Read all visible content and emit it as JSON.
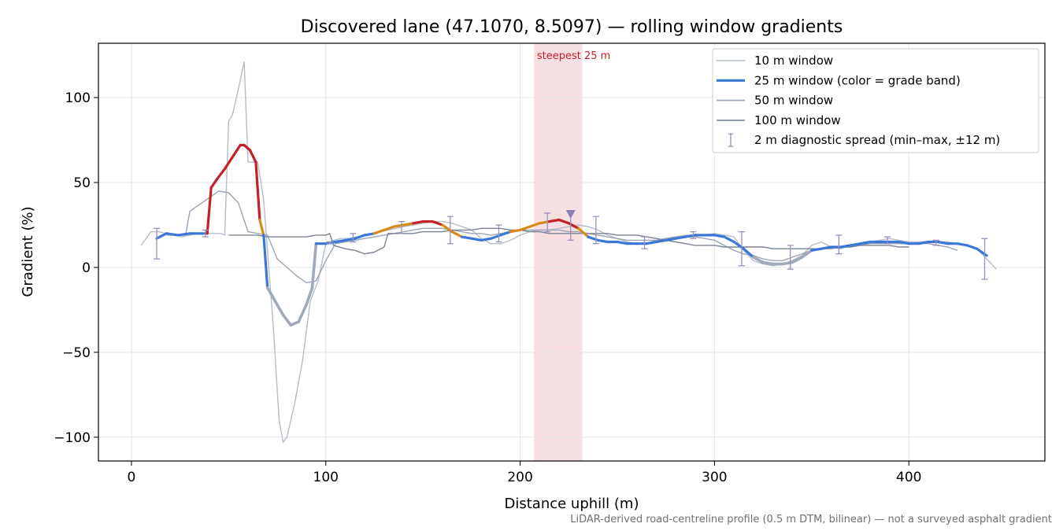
{
  "chart_data": {
    "type": "line",
    "title": "Discovered lane (47.1070, 8.5097) — rolling window gradients",
    "xlabel": "Distance uphill (m)",
    "ylabel": "Gradient (%)",
    "xlim": [
      -17,
      470
    ],
    "ylim": [
      -114,
      132
    ],
    "x_ticks": [
      0,
      100,
      200,
      300,
      400
    ],
    "y_ticks": [
      -100,
      -50,
      0,
      50,
      100
    ],
    "x_tick_labels": [
      "0",
      "100",
      "200",
      "300",
      "400"
    ],
    "y_tick_labels": [
      "−100",
      "−50",
      "0",
      "50",
      "100"
    ],
    "grid": true,
    "legend_position": "top-right",
    "footnote": "LiDAR-derived road-centreline profile (0.5 m DTM, bilinear) — not a surveyed asphalt gradient",
    "highlight": {
      "label": "steepest 25 m",
      "x_start": 207,
      "x_end": 232,
      "marker_x": 226,
      "marker_y": 31
    },
    "grade_band_colors": {
      "easy": "#3a78d8",
      "moderate": "#d88a1a",
      "steep": "#c4202a",
      "descent": "#a0aab8"
    },
    "series": [
      {
        "name": "10 m window",
        "color": "#b4bdc9",
        "x": [
          5,
          10,
          14,
          18,
          22,
          26,
          30,
          34,
          38,
          42,
          46,
          48,
          50,
          52,
          55,
          58,
          60,
          62,
          65,
          68,
          70,
          73,
          76,
          78,
          80,
          84,
          88,
          92,
          96,
          100,
          104,
          108,
          112,
          116,
          120,
          124,
          128,
          132,
          136,
          140,
          145,
          150,
          155,
          160,
          165,
          170,
          175,
          180,
          185,
          190,
          195,
          200,
          205,
          210,
          215,
          220,
          225,
          230,
          235,
          240,
          245,
          250,
          255,
          260,
          265,
          270,
          275,
          280,
          285,
          290,
          295,
          300,
          305,
          310,
          315,
          320,
          325,
          330,
          335,
          340,
          345,
          350,
          355,
          360,
          365,
          370,
          375,
          380,
          385,
          390,
          395,
          400,
          405,
          410,
          415,
          420,
          425,
          430,
          435,
          440,
          445
        ],
        "y": [
          13,
          21,
          21,
          20,
          19,
          18,
          19,
          20,
          20,
          20,
          20,
          19,
          86,
          90,
          105,
          121,
          62,
          62,
          62,
          40,
          10,
          -35,
          -90,
          -103,
          -100,
          -80,
          -55,
          -20,
          -8,
          14,
          16,
          17,
          17,
          18,
          19,
          20,
          21,
          22,
          23,
          24,
          25,
          26,
          27,
          27,
          26,
          24,
          22,
          17,
          14,
          14,
          16,
          19,
          21,
          22,
          22,
          23,
          24,
          25,
          24,
          22,
          19,
          17,
          15,
          14,
          14,
          16,
          17,
          18,
          19,
          19,
          19,
          20,
          19,
          18,
          10,
          4,
          2,
          1,
          2,
          4,
          7,
          13,
          15,
          12,
          11,
          13,
          14,
          15,
          16,
          17,
          16,
          15,
          15,
          15,
          15,
          15,
          14,
          13,
          11,
          5,
          -1
        ]
      },
      {
        "name": "25 m window (color = grade band)",
        "color": "#3a78d8",
        "x": [
          13,
          18,
          24,
          30,
          36,
          39,
          41,
          44,
          48,
          52,
          56,
          58,
          61,
          64,
          66,
          68,
          70,
          74,
          78,
          82,
          86,
          90,
          93,
          95,
          100,
          105,
          110,
          115,
          120,
          125,
          130,
          135,
          140,
          145,
          150,
          155,
          160,
          165,
          170,
          175,
          180,
          185,
          190,
          195,
          200,
          205,
          210,
          215,
          220,
          225,
          230,
          235,
          240,
          245,
          250,
          255,
          260,
          265,
          270,
          275,
          280,
          285,
          290,
          295,
          300,
          305,
          310,
          315,
          320,
          325,
          330,
          335,
          340,
          345,
          350,
          355,
          360,
          365,
          370,
          375,
          380,
          385,
          390,
          395,
          400,
          405,
          410,
          415,
          420,
          425,
          430,
          435,
          440
        ],
        "y": [
          17,
          20,
          19,
          20,
          20,
          20,
          47,
          52,
          58,
          65,
          72,
          72,
          69,
          62,
          28,
          19,
          -12,
          -20,
          -28,
          -34,
          -32,
          -22,
          -12,
          14,
          14,
          15,
          16,
          17,
          19,
          20,
          22,
          24,
          25,
          26,
          27,
          27,
          25,
          21,
          18,
          17,
          16,
          17,
          19,
          21,
          22,
          24,
          26,
          27,
          28,
          26,
          23,
          18,
          16,
          15,
          15,
          14,
          14,
          14,
          15,
          16,
          17,
          18,
          19,
          19,
          19,
          18,
          15,
          11,
          6,
          3,
          2,
          2,
          3,
          6,
          10,
          11,
          12,
          12,
          13,
          14,
          15,
          15,
          15,
          15,
          14,
          14,
          15,
          15,
          14,
          14,
          13,
          11,
          7
        ],
        "band": [
          "easy",
          "easy",
          "easy",
          "easy",
          "easy",
          "steep",
          "steep",
          "steep",
          "steep",
          "steep",
          "steep",
          "steep",
          "steep",
          "steep",
          "moderate",
          "easy",
          "descent",
          "descent",
          "descent",
          "descent",
          "descent",
          "descent",
          "descent",
          "easy",
          "easy",
          "easy",
          "easy",
          "easy",
          "easy",
          "moderate",
          "moderate",
          "moderate",
          "moderate",
          "steep",
          "steep",
          "steep",
          "moderate",
          "moderate",
          "easy",
          "easy",
          "easy",
          "easy",
          "easy",
          "moderate",
          "moderate",
          "moderate",
          "moderate",
          "steep",
          "steep",
          "steep",
          "moderate",
          "easy",
          "easy",
          "easy",
          "easy",
          "easy",
          "easy",
          "easy",
          "easy",
          "easy",
          "easy",
          "easy",
          "easy",
          "easy",
          "easy",
          "easy",
          "easy",
          "easy",
          "descent",
          "descent",
          "descent",
          "descent",
          "descent",
          "descent",
          "easy",
          "easy",
          "easy",
          "easy",
          "easy",
          "easy",
          "easy",
          "easy",
          "easy",
          "easy",
          "easy",
          "easy",
          "easy",
          "easy",
          "easy",
          "easy",
          "easy",
          "easy",
          "easy"
        ]
      },
      {
        "name": "50 m window",
        "color": "#9aa5b5",
        "x": [
          18,
          24,
          28,
          30,
          35,
          40,
          45,
          50,
          55,
          60,
          65,
          70,
          75,
          80,
          85,
          90,
          95,
          100,
          105,
          110,
          115,
          120,
          125,
          130,
          135,
          140,
          145,
          150,
          155,
          160,
          165,
          170,
          175,
          180,
          185,
          190,
          195,
          200,
          205,
          210,
          215,
          220,
          225,
          230,
          235,
          240,
          245,
          250,
          255,
          260,
          265,
          270,
          275,
          280,
          285,
          290,
          295,
          300,
          305,
          310,
          315,
          320,
          325,
          330,
          335,
          340,
          345,
          350,
          355,
          360,
          365,
          370,
          375,
          380,
          385,
          390,
          395,
          400,
          405,
          410,
          415,
          420,
          425
        ],
        "y": [
          19,
          19,
          20,
          33,
          37,
          41,
          45,
          44,
          38,
          21,
          20,
          19,
          5,
          0,
          -5,
          -9,
          -8,
          4,
          14,
          15,
          16,
          17,
          18,
          19,
          20,
          21,
          22,
          23,
          23,
          23,
          22,
          21,
          20,
          20,
          19,
          20,
          21,
          22,
          22,
          22,
          22,
          22,
          21,
          21,
          20,
          19,
          18,
          17,
          16,
          16,
          16,
          16,
          17,
          18,
          18,
          18,
          17,
          16,
          13,
          10,
          8,
          7,
          5,
          4,
          4,
          6,
          8,
          10,
          11,
          11,
          12,
          13,
          13,
          14,
          14,
          14,
          14,
          14,
          14,
          14,
          13,
          12,
          10
        ]
      },
      {
        "name": "100 m window",
        "color": "#7a8494",
        "x": [
          50,
          55,
          60,
          65,
          70,
          75,
          80,
          85,
          90,
          95,
          100,
          102,
          104,
          110,
          115,
          120,
          125,
          130,
          132,
          135,
          140,
          145,
          150,
          155,
          160,
          165,
          170,
          175,
          180,
          185,
          190,
          195,
          200,
          205,
          210,
          215,
          220,
          225,
          230,
          235,
          240,
          245,
          250,
          255,
          260,
          265,
          270,
          275,
          280,
          285,
          290,
          295,
          300,
          305,
          310,
          315,
          320,
          325,
          330,
          335,
          340,
          345,
          350,
          355,
          360,
          365,
          370,
          375,
          380,
          385,
          390,
          395,
          400
        ],
        "y": [
          19,
          19,
          19,
          19,
          18,
          18,
          18,
          18,
          18,
          19,
          19,
          20,
          13,
          11,
          10,
          8,
          9,
          12,
          20,
          20,
          20,
          20,
          21,
          21,
          21,
          22,
          22,
          22,
          23,
          23,
          23,
          22,
          22,
          21,
          21,
          20,
          20,
          20,
          20,
          20,
          20,
          20,
          19,
          19,
          19,
          18,
          17,
          16,
          15,
          14,
          13,
          13,
          13,
          12,
          12,
          12,
          12,
          12,
          11,
          11,
          11,
          11,
          11,
          11,
          12,
          12,
          12,
          13,
          13,
          13,
          13,
          12,
          12
        ]
      }
    ],
    "errorbars": {
      "name": "2 m diagnostic spread (min–max, ±12 m)",
      "color": "#9a90bc",
      "x": [
        13,
        38,
        102,
        114,
        139,
        164,
        189,
        214,
        226,
        239,
        264,
        289,
        314,
        339,
        364,
        389,
        414,
        439
      ],
      "low": [
        5,
        18,
        14,
        15,
        20,
        14,
        15,
        21,
        16,
        14,
        11,
        17,
        1,
        -1,
        8,
        14,
        13,
        -7
      ],
      "high": [
        23,
        22,
        15,
        20,
        27,
        30,
        25,
        32,
        32,
        30,
        18,
        21,
        21,
        13,
        19,
        18,
        16,
        17
      ]
    }
  }
}
